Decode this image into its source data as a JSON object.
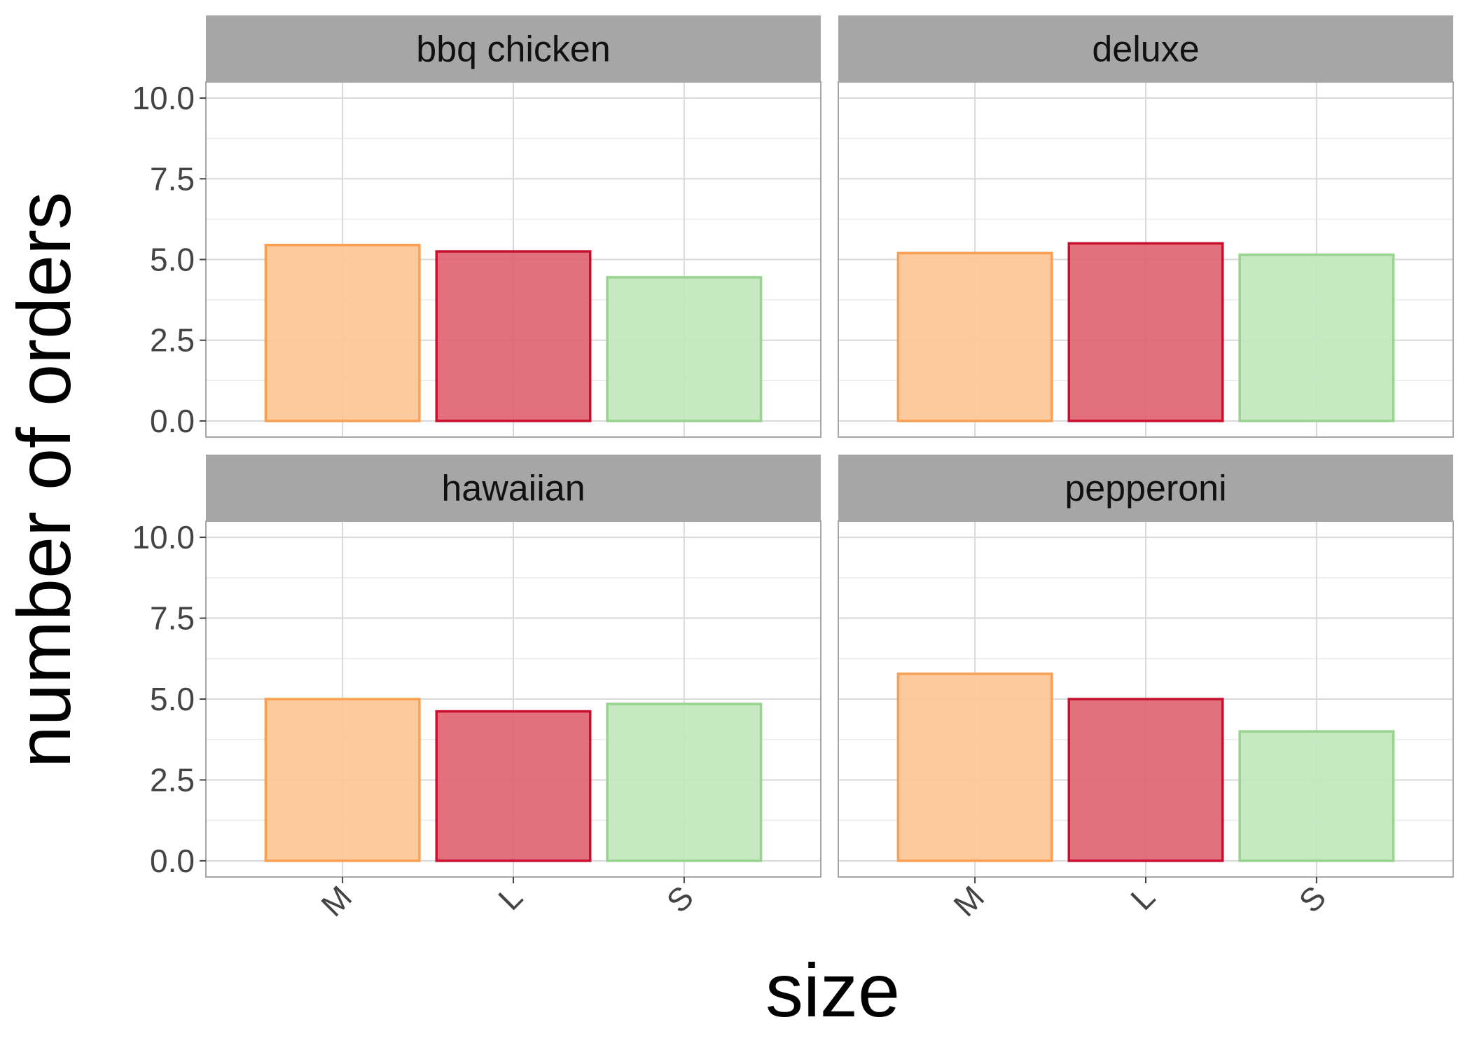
{
  "chart_data": {
    "type": "bar",
    "layout": "facet_wrap",
    "xlabel": "size",
    "ylabel": "number of orders",
    "categories": [
      "M",
      "L",
      "S"
    ],
    "ylim": [
      -0.5,
      10.5
    ],
    "yticks": [
      "0.0",
      "2.5",
      "5.0",
      "7.5",
      "10.0"
    ],
    "ytick_values": [
      0,
      2.5,
      5,
      7.5,
      10
    ],
    "grid": true,
    "bar_colors": {
      "M": {
        "fill": "#fdc595",
        "stroke": "#f9a055"
      },
      "L": {
        "fill": "#e06472",
        "stroke": "#c8102e"
      },
      "S": {
        "fill": "#c2e7bd",
        "stroke": "#98d48f"
      }
    },
    "facets": [
      {
        "name": "bbq chicken",
        "values": [
          5.45,
          5.25,
          4.45
        ]
      },
      {
        "name": "deluxe",
        "values": [
          5.2,
          5.5,
          5.15
        ]
      },
      {
        "name": "hawaiian",
        "values": [
          5.0,
          4.62,
          4.85
        ]
      },
      {
        "name": "pepperoni",
        "values": [
          5.78,
          5.0,
          4.0
        ]
      }
    ]
  }
}
